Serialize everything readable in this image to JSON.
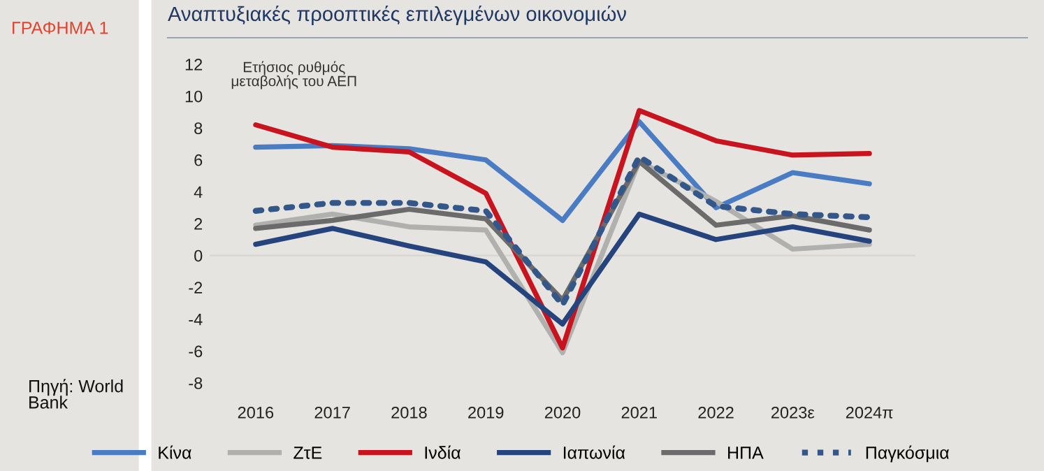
{
  "chart_data": {
    "type": "line",
    "title": "Αναπτυξιακές προοπτικές επιλεγμένων οικονομιών",
    "subtitle": "ΓΡΑΦΗΜΑ 1",
    "annotations": [
      "Ετήσιος ρυθμός\nμεταβολής του ΑΕΠ",
      "Πηγή: World\nBank"
    ],
    "categories": [
      "2016",
      "2017",
      "2018",
      "2019",
      "2020",
      "2021",
      "2022",
      "2023ε",
      "2024π"
    ],
    "series": [
      {
        "name": "Κίνα",
        "color": "#4a7cc4",
        "values": [
          6.8,
          6.9,
          6.7,
          6.0,
          2.2,
          8.4,
          3.0,
          5.2,
          4.5
        ]
      },
      {
        "name": "ΖτΕ",
        "color": "#b0b0ae",
        "values": [
          1.9,
          2.6,
          1.8,
          1.6,
          -6.1,
          5.9,
          3.4,
          0.4,
          0.7
        ]
      },
      {
        "name": "Ινδία",
        "color": "#c8141e",
        "values": [
          8.2,
          6.8,
          6.5,
          3.9,
          -5.8,
          9.1,
          7.2,
          6.3,
          6.4
        ]
      },
      {
        "name": "Ιαπωνία",
        "color": "#25447e",
        "values": [
          0.7,
          1.7,
          0.6,
          -0.4,
          -4.3,
          2.6,
          1.0,
          1.8,
          0.9
        ]
      },
      {
        "name": "ΗΠΑ",
        "color": "#6b6b6b",
        "values": [
          1.7,
          2.2,
          2.9,
          2.3,
          -2.8,
          5.9,
          1.9,
          2.5,
          1.6
        ]
      },
      {
        "name": "Παγκόσμια",
        "color": "#34578a",
        "line_style": "dotted",
        "values": [
          2.8,
          3.3,
          3.3,
          2.8,
          -3.1,
          6.2,
          3.1,
          2.6,
          2.4
        ]
      }
    ],
    "ylim": [
      -8,
      12
    ],
    "yticks": [
      -8,
      -6,
      -4,
      -2,
      0,
      2,
      4,
      6,
      8,
      10,
      12
    ],
    "ref_lines": [
      {
        "axis": "y",
        "value": 0,
        "color": "#d8d6d2"
      }
    ],
    "grid": false,
    "legend": "bottom",
    "marker": "none",
    "line_style": "solid"
  }
}
